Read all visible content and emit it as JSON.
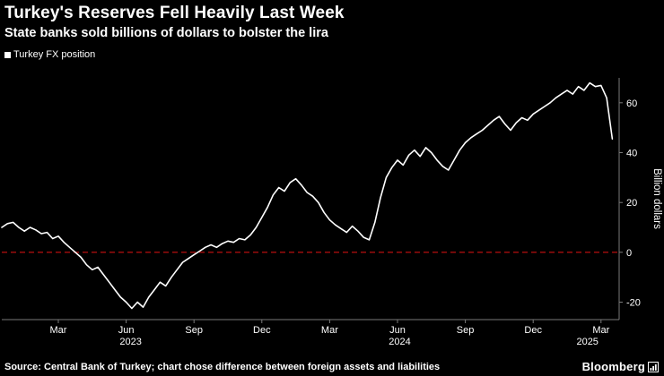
{
  "header": {
    "title": "Turkey's Reserves Fell Heavily Last Week",
    "subtitle": "State banks sold billions of dollars to bolster the lira"
  },
  "legend": {
    "label": "Turkey FX position",
    "marker_color": "#ffffff"
  },
  "footer": {
    "source": "Source: Central Bank of Turkey; chart chose difference between foreign assets and liabilities",
    "brand": "Bloomberg"
  },
  "chart_data": {
    "type": "line",
    "title": "Turkey's Reserves Fell Heavily Last Week",
    "subtitle": "State banks sold billions of dollars to bolster the lira",
    "xlabel": "",
    "ylabel": "Billion dollars",
    "ylim": [
      -27,
      70
    ],
    "yticks": [
      -20,
      0,
      20,
      40,
      60
    ],
    "x_domain_months": [
      0,
      27.3
    ],
    "x_ticks": [
      {
        "m": 2.5,
        "label": "Mar"
      },
      {
        "m": 5.5,
        "label": "Jun"
      },
      {
        "m": 8.5,
        "label": "Sep"
      },
      {
        "m": 11.5,
        "label": "Dec"
      },
      {
        "m": 14.5,
        "label": "Mar"
      },
      {
        "m": 17.5,
        "label": "Jun"
      },
      {
        "m": 20.5,
        "label": "Sep"
      },
      {
        "m": 23.5,
        "label": "Dec"
      },
      {
        "m": 26.5,
        "label": "Mar"
      }
    ],
    "year_ticks": [
      {
        "m": 5.7,
        "label": "2023"
      },
      {
        "m": 17.6,
        "label": "2024"
      },
      {
        "m": 25.9,
        "label": "2025"
      }
    ],
    "grid": false,
    "legend_position": "top-left",
    "background": "#000000",
    "line_color": "#ffffff",
    "axis_color": "#7a7a7a",
    "tick_label_color": "#ffffff",
    "zero_line_color": "#cc1111",
    "series": [
      {
        "name": "Turkey FX position",
        "x_unit": "months since Jan 2023",
        "x": [
          0,
          0.25,
          0.5,
          0.75,
          1,
          1.25,
          1.5,
          1.75,
          2,
          2.25,
          2.5,
          2.75,
          3,
          3.25,
          3.5,
          3.75,
          4,
          4.25,
          4.5,
          4.75,
          5,
          5.25,
          5.5,
          5.75,
          6,
          6.25,
          6.5,
          6.75,
          7,
          7.25,
          7.5,
          7.75,
          8,
          8.25,
          8.5,
          8.75,
          9,
          9.25,
          9.5,
          9.75,
          10,
          10.25,
          10.5,
          10.75,
          11,
          11.25,
          11.5,
          11.75,
          12,
          12.25,
          12.5,
          12.75,
          13,
          13.25,
          13.5,
          13.75,
          14,
          14.25,
          14.5,
          14.75,
          15,
          15.25,
          15.5,
          15.75,
          16,
          16.25,
          16.5,
          16.75,
          17,
          17.25,
          17.5,
          17.75,
          18,
          18.25,
          18.5,
          18.75,
          19,
          19.25,
          19.5,
          19.75,
          20,
          20.25,
          20.5,
          20.75,
          21,
          21.25,
          21.5,
          21.75,
          22,
          22.25,
          22.5,
          22.75,
          23,
          23.25,
          23.5,
          23.75,
          24,
          24.25,
          24.5,
          24.75,
          25,
          25.25,
          25.5,
          25.75,
          26,
          26.25,
          26.5,
          26.75,
          27
        ],
        "y": [
          10,
          11.5,
          12,
          10,
          8.5,
          10,
          9,
          7.5,
          8,
          5.5,
          6.5,
          4,
          2,
          0,
          -2,
          -5,
          -7,
          -6,
          -9,
          -12,
          -15,
          -18,
          -20,
          -22.5,
          -20,
          -22,
          -18,
          -15,
          -12,
          -13.5,
          -10,
          -7,
          -4,
          -2.5,
          -1,
          0.5,
          2,
          3,
          2,
          3.5,
          4.5,
          4,
          5.5,
          5,
          7,
          10,
          14,
          18,
          23,
          26,
          24.5,
          28,
          29.5,
          27,
          24,
          22.5,
          20,
          16,
          13,
          11,
          9.5,
          8,
          10.5,
          8.5,
          6,
          5,
          12,
          22,
          30,
          34,
          37,
          35,
          39,
          41,
          38.5,
          42,
          40,
          37,
          34.5,
          33,
          37,
          41,
          44,
          46,
          47.5,
          49,
          51,
          53,
          54.5,
          51.5,
          49,
          52,
          54,
          53,
          55.5,
          57,
          58.5,
          60,
          62,
          63.5,
          65,
          63.5,
          66.5,
          65,
          68,
          66.5,
          67,
          62,
          45.5
        ]
      }
    ]
  }
}
